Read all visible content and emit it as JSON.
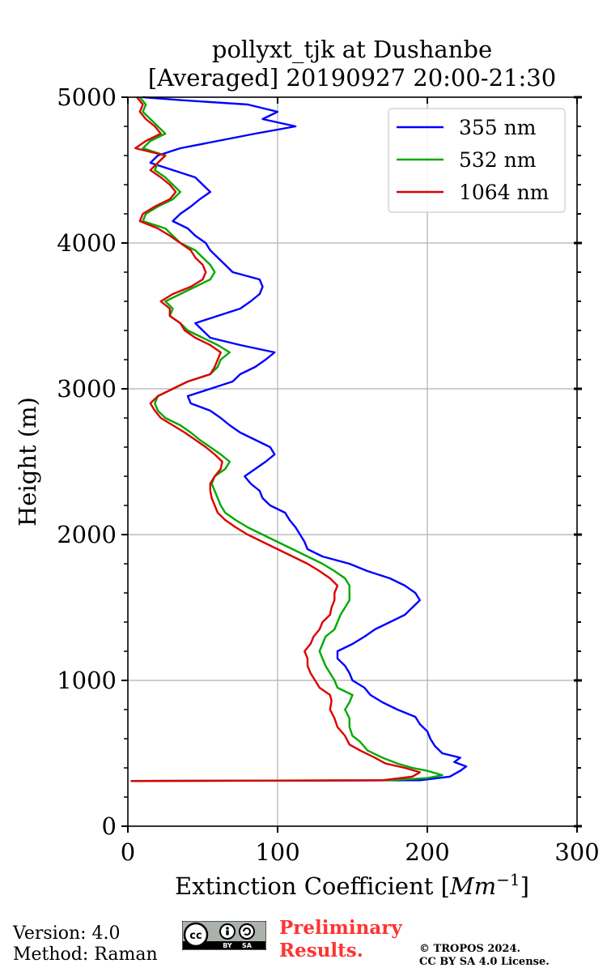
{
  "chart_data": {
    "type": "line",
    "title": [
      "pollyxt_tjk at Dushanbe",
      "[Averaged] 20190927 20:00-21:30"
    ],
    "xlabel": "Extinction Coefficient [",
    "xlabel_unit": "Mm",
    "xlabel_exp": "−1",
    "xlabel_close": "]",
    "ylabel": "Height (m)",
    "xlim": [
      0,
      300
    ],
    "ylim": [
      0,
      5000
    ],
    "xticks": [
      "0",
      "100",
      "200",
      "300"
    ],
    "yticks": [
      "0",
      "1000",
      "2000",
      "3000",
      "4000",
      "5000"
    ],
    "grid": true,
    "legend_position": "top-right",
    "series": [
      {
        "name": "355 nm",
        "color": "#0000ff",
        "points": [
          [
            2,
            310
          ],
          [
            195,
            315
          ],
          [
            215,
            340
          ],
          [
            222,
            380
          ],
          [
            226,
            410
          ],
          [
            218,
            440
          ],
          [
            222,
            470
          ],
          [
            210,
            500
          ],
          [
            205,
            550
          ],
          [
            202,
            600
          ],
          [
            200,
            650
          ],
          [
            195,
            700
          ],
          [
            192,
            750
          ],
          [
            180,
            800
          ],
          [
            170,
            850
          ],
          [
            162,
            900
          ],
          [
            158,
            950
          ],
          [
            150,
            1000
          ],
          [
            148,
            1050
          ],
          [
            145,
            1100
          ],
          [
            140,
            1150
          ],
          [
            140,
            1200
          ],
          [
            150,
            1250
          ],
          [
            158,
            1300
          ],
          [
            165,
            1350
          ],
          [
            175,
            1400
          ],
          [
            185,
            1450
          ],
          [
            190,
            1500
          ],
          [
            195,
            1550
          ],
          [
            192,
            1600
          ],
          [
            185,
            1650
          ],
          [
            175,
            1700
          ],
          [
            160,
            1750
          ],
          [
            148,
            1800
          ],
          [
            130,
            1850
          ],
          [
            120,
            1900
          ],
          [
            118,
            1950
          ],
          [
            115,
            2000
          ],
          [
            112,
            2050
          ],
          [
            108,
            2100
          ],
          [
            105,
            2150
          ],
          [
            95,
            2200
          ],
          [
            90,
            2250
          ],
          [
            88,
            2300
          ],
          [
            82,
            2350
          ],
          [
            78,
            2400
          ],
          [
            85,
            2450
          ],
          [
            92,
            2500
          ],
          [
            98,
            2550
          ],
          [
            95,
            2600
          ],
          [
            85,
            2650
          ],
          [
            75,
            2700
          ],
          [
            68,
            2750
          ],
          [
            62,
            2800
          ],
          [
            55,
            2850
          ],
          [
            42,
            2900
          ],
          [
            40,
            2950
          ],
          [
            55,
            3000
          ],
          [
            70,
            3050
          ],
          [
            75,
            3100
          ],
          [
            85,
            3150
          ],
          [
            92,
            3200
          ],
          [
            98,
            3250
          ],
          [
            75,
            3300
          ],
          [
            55,
            3350
          ],
          [
            50,
            3400
          ],
          [
            45,
            3450
          ],
          [
            60,
            3500
          ],
          [
            75,
            3550
          ],
          [
            82,
            3600
          ],
          [
            88,
            3650
          ],
          [
            90,
            3700
          ],
          [
            88,
            3750
          ],
          [
            70,
            3800
          ],
          [
            65,
            3850
          ],
          [
            60,
            3900
          ],
          [
            55,
            3950
          ],
          [
            52,
            4000
          ],
          [
            45,
            4050
          ],
          [
            40,
            4100
          ],
          [
            30,
            4150
          ],
          [
            35,
            4200
          ],
          [
            42,
            4250
          ],
          [
            48,
            4300
          ],
          [
            55,
            4350
          ],
          [
            50,
            4400
          ],
          [
            45,
            4450
          ],
          [
            30,
            4500
          ],
          [
            15,
            4550
          ],
          [
            20,
            4600
          ],
          [
            35,
            4650
          ],
          [
            60,
            4700
          ],
          [
            85,
            4750
          ],
          [
            112,
            4800
          ],
          [
            90,
            4850
          ],
          [
            100,
            4900
          ],
          [
            80,
            4950
          ],
          [
            35,
            4980
          ],
          [
            10,
            5000
          ]
        ]
      },
      {
        "name": "532 nm",
        "color": "#00aa00",
        "points": [
          [
            2,
            310
          ],
          [
            175,
            315
          ],
          [
            200,
            330
          ],
          [
            210,
            350
          ],
          [
            200,
            380
          ],
          [
            190,
            400
          ],
          [
            180,
            430
          ],
          [
            170,
            470
          ],
          [
            160,
            520
          ],
          [
            155,
            580
          ],
          [
            150,
            620
          ],
          [
            148,
            680
          ],
          [
            148,
            740
          ],
          [
            145,
            800
          ],
          [
            148,
            850
          ],
          [
            150,
            900
          ],
          [
            140,
            950
          ],
          [
            138,
            1000
          ],
          [
            135,
            1050
          ],
          [
            132,
            1100
          ],
          [
            130,
            1150
          ],
          [
            128,
            1200
          ],
          [
            130,
            1250
          ],
          [
            132,
            1300
          ],
          [
            138,
            1350
          ],
          [
            140,
            1400
          ],
          [
            142,
            1450
          ],
          [
            145,
            1500
          ],
          [
            148,
            1550
          ],
          [
            148,
            1600
          ],
          [
            148,
            1650
          ],
          [
            145,
            1700
          ],
          [
            138,
            1750
          ],
          [
            130,
            1800
          ],
          [
            120,
            1850
          ],
          [
            110,
            1900
          ],
          [
            100,
            1950
          ],
          [
            90,
            2000
          ],
          [
            80,
            2050
          ],
          [
            72,
            2100
          ],
          [
            65,
            2150
          ],
          [
            62,
            2200
          ],
          [
            60,
            2250
          ],
          [
            58,
            2300
          ],
          [
            56,
            2350
          ],
          [
            58,
            2400
          ],
          [
            65,
            2450
          ],
          [
            68,
            2500
          ],
          [
            62,
            2550
          ],
          [
            55,
            2600
          ],
          [
            48,
            2650
          ],
          [
            42,
            2700
          ],
          [
            35,
            2750
          ],
          [
            25,
            2800
          ],
          [
            20,
            2850
          ],
          [
            18,
            2900
          ],
          [
            20,
            2950
          ],
          [
            30,
            3000
          ],
          [
            40,
            3050
          ],
          [
            55,
            3100
          ],
          [
            60,
            3150
          ],
          [
            62,
            3200
          ],
          [
            68,
            3250
          ],
          [
            60,
            3300
          ],
          [
            50,
            3350
          ],
          [
            40,
            3400
          ],
          [
            35,
            3450
          ],
          [
            28,
            3500
          ],
          [
            30,
            3550
          ],
          [
            25,
            3600
          ],
          [
            35,
            3650
          ],
          [
            45,
            3700
          ],
          [
            55,
            3750
          ],
          [
            58,
            3800
          ],
          [
            55,
            3850
          ],
          [
            50,
            3900
          ],
          [
            45,
            3950
          ],
          [
            35,
            4000
          ],
          [
            30,
            4050
          ],
          [
            25,
            4100
          ],
          [
            10,
            4150
          ],
          [
            12,
            4200
          ],
          [
            20,
            4250
          ],
          [
            30,
            4300
          ],
          [
            35,
            4350
          ],
          [
            30,
            4400
          ],
          [
            25,
            4450
          ],
          [
            18,
            4500
          ],
          [
            20,
            4550
          ],
          [
            25,
            4600
          ],
          [
            10,
            4650
          ],
          [
            15,
            4700
          ],
          [
            25,
            4750
          ],
          [
            20,
            4800
          ],
          [
            15,
            4850
          ],
          [
            10,
            4900
          ],
          [
            12,
            4950
          ],
          [
            8,
            5000
          ]
        ]
      },
      {
        "name": "1064 nm",
        "color": "#dd0000",
        "points": [
          [
            2,
            310
          ],
          [
            170,
            315
          ],
          [
            190,
            340
          ],
          [
            195,
            370
          ],
          [
            185,
            400
          ],
          [
            172,
            430
          ],
          [
            165,
            470
          ],
          [
            155,
            520
          ],
          [
            148,
            560
          ],
          [
            145,
            620
          ],
          [
            140,
            680
          ],
          [
            138,
            740
          ],
          [
            135,
            800
          ],
          [
            136,
            860
          ],
          [
            135,
            900
          ],
          [
            128,
            950
          ],
          [
            125,
            1000
          ],
          [
            122,
            1050
          ],
          [
            120,
            1100
          ],
          [
            120,
            1150
          ],
          [
            118,
            1200
          ],
          [
            122,
            1250
          ],
          [
            124,
            1300
          ],
          [
            128,
            1350
          ],
          [
            130,
            1400
          ],
          [
            135,
            1450
          ],
          [
            136,
            1500
          ],
          [
            138,
            1550
          ],
          [
            138,
            1600
          ],
          [
            140,
            1650
          ],
          [
            135,
            1700
          ],
          [
            128,
            1750
          ],
          [
            120,
            1800
          ],
          [
            110,
            1850
          ],
          [
            100,
            1900
          ],
          [
            90,
            1950
          ],
          [
            80,
            2000
          ],
          [
            72,
            2050
          ],
          [
            65,
            2100
          ],
          [
            60,
            2150
          ],
          [
            58,
            2200
          ],
          [
            56,
            2250
          ],
          [
            55,
            2300
          ],
          [
            55,
            2350
          ],
          [
            58,
            2400
          ],
          [
            62,
            2450
          ],
          [
            63,
            2500
          ],
          [
            58,
            2550
          ],
          [
            52,
            2600
          ],
          [
            45,
            2650
          ],
          [
            38,
            2700
          ],
          [
            30,
            2750
          ],
          [
            22,
            2800
          ],
          [
            18,
            2850
          ],
          [
            15,
            2900
          ],
          [
            20,
            2950
          ],
          [
            30,
            3000
          ],
          [
            40,
            3050
          ],
          [
            55,
            3100
          ],
          [
            58,
            3150
          ],
          [
            60,
            3200
          ],
          [
            62,
            3250
          ],
          [
            55,
            3300
          ],
          [
            45,
            3350
          ],
          [
            38,
            3400
          ],
          [
            35,
            3450
          ],
          [
            28,
            3500
          ],
          [
            28,
            3550
          ],
          [
            22,
            3600
          ],
          [
            30,
            3650
          ],
          [
            42,
            3700
          ],
          [
            50,
            3750
          ],
          [
            52,
            3800
          ],
          [
            50,
            3850
          ],
          [
            45,
            3900
          ],
          [
            42,
            3950
          ],
          [
            35,
            4000
          ],
          [
            28,
            4050
          ],
          [
            20,
            4100
          ],
          [
            8,
            4150
          ],
          [
            10,
            4200
          ],
          [
            18,
            4250
          ],
          [
            28,
            4300
          ],
          [
            32,
            4350
          ],
          [
            28,
            4400
          ],
          [
            22,
            4450
          ],
          [
            15,
            4500
          ],
          [
            20,
            4550
          ],
          [
            25,
            4600
          ],
          [
            5,
            4650
          ],
          [
            12,
            4700
          ],
          [
            22,
            4750
          ],
          [
            18,
            4800
          ],
          [
            12,
            4850
          ],
          [
            8,
            4900
          ],
          [
            10,
            4950
          ],
          [
            6,
            5000
          ]
        ]
      }
    ]
  },
  "footer": {
    "version": "Version: 4.0",
    "method": "Method: Raman",
    "preliminary_line1": "Preliminary",
    "preliminary_line2": "Results.",
    "copyright_line1": "© TROPOS 2024.",
    "copyright_line2": "CC BY SA 4.0 License.",
    "cc_by": "BY",
    "cc_sa": "SA",
    "cc_mark": "cc"
  }
}
